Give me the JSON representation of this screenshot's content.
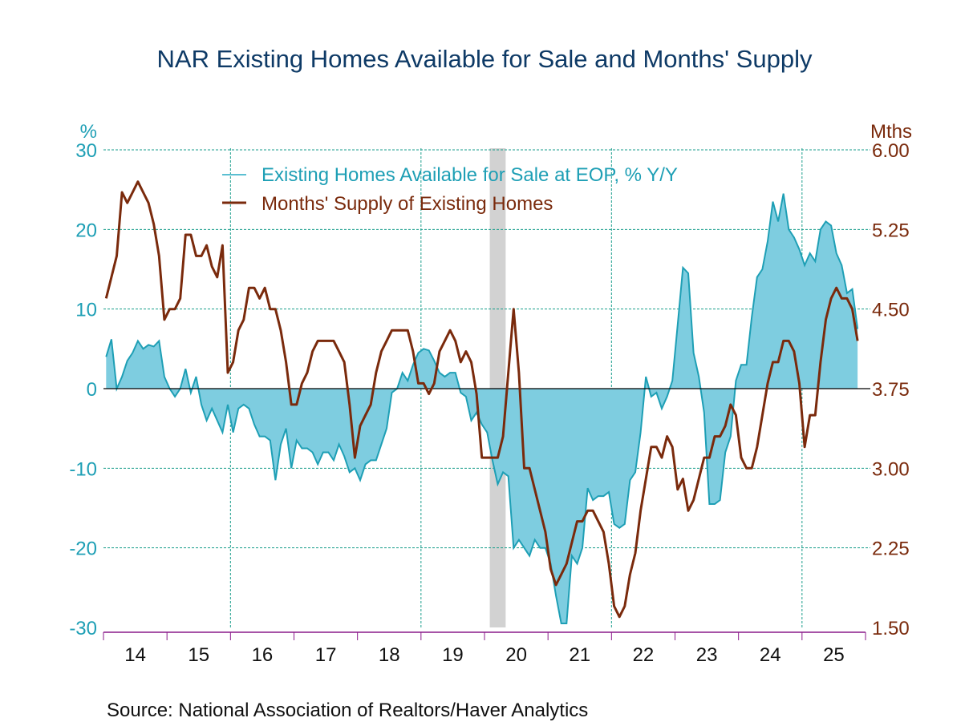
{
  "chart_data": {
    "type": "area+line",
    "title": "NAR Existing Homes Available for Sale and Months' Supply",
    "source": "Source:  National Association of Realtors/Haver Analytics",
    "left_axis": {
      "label": "%",
      "ylim": [
        -30,
        30
      ],
      "ticks": [
        "30",
        "20",
        "10",
        "0",
        "-10",
        "-20",
        "-30"
      ],
      "tick_values": [
        30,
        20,
        10,
        0,
        -10,
        -20,
        -30
      ],
      "color": "#1e9fb5"
    },
    "right_axis": {
      "label": "Mths",
      "ylim": [
        1.5,
        6.0
      ],
      "ticks": [
        "6.00",
        "5.25",
        "4.50",
        "3.75",
        "3.00",
        "2.25",
        "1.50"
      ],
      "tick_values": [
        6.0,
        5.25,
        4.5,
        3.75,
        3.0,
        2.25,
        1.5
      ],
      "color": "#7a2a0c"
    },
    "x_axis": {
      "start": "2014-01",
      "end": "2025-12",
      "year_labels": [
        "14",
        "15",
        "16",
        "17",
        "18",
        "19",
        "20",
        "21",
        "22",
        "23",
        "24",
        "25"
      ],
      "frequency": "monthly"
    },
    "grid": true,
    "legend": {
      "placement": "top-center",
      "entries": [
        {
          "label": "Existing Homes Available for Sale at EOP, % Y/Y",
          "color": "#1e9fb5"
        },
        {
          "label": "Months' Supply of Existing Homes",
          "color": "#7a2a0c"
        }
      ]
    },
    "recession_shading": [
      {
        "start": "2020-02",
        "end": "2020-04"
      }
    ],
    "series": [
      {
        "name": "Existing Homes Available for Sale at EOP, % Y/Y",
        "axis": "left",
        "style": "area",
        "color": "#1e9fb5",
        "fill": "#7ecde0",
        "values": [
          4,
          6.2,
          0,
          1.5,
          3.5,
          4.5,
          6,
          5,
          5.5,
          5.3,
          6,
          1.5,
          0,
          -1,
          0,
          2.5,
          -0.5,
          1.5,
          -2,
          -4,
          -2.5,
          -4,
          -5.5,
          -2,
          -5.5,
          -2.5,
          -2,
          -2.5,
          -4.5,
          -6,
          -6,
          -6.5,
          -11.5,
          -7,
          -5,
          -10,
          -6.5,
          -7.5,
          -7.5,
          -8,
          -9.5,
          -8,
          -8,
          -9,
          -7,
          -8.5,
          -10.5,
          -10,
          -11.5,
          -9.5,
          -9,
          -9,
          -7,
          -5,
          -0.5,
          0,
          2,
          1,
          3,
          4.5,
          5,
          4.8,
          3.5,
          2,
          1.5,
          2,
          2,
          -0.5,
          -1,
          -4,
          -3,
          -4.5,
          -5.5,
          -9,
          -12,
          -10.5,
          -11,
          -20,
          -19,
          -20,
          -21,
          -19,
          -20,
          -20,
          -22,
          -26,
          -29.5,
          -29.5,
          -21,
          -22,
          -20,
          -12.5,
          -14,
          -13.5,
          -13.5,
          -13,
          -17,
          -17.5,
          -17,
          -11.5,
          -10.5,
          -5.5,
          1.5,
          -1,
          -0.5,
          -2.5,
          -1,
          1,
          8,
          15.2,
          14.5,
          4.5,
          1.5,
          -3,
          -14.5,
          -14.5,
          -14,
          -8,
          -6,
          1,
          3,
          3,
          9,
          14,
          15,
          18.5,
          23.5,
          21,
          24.5,
          20,
          19,
          17.5,
          15.5,
          17,
          16,
          20,
          21,
          20.5,
          17,
          15.5,
          12,
          12.5,
          7.5
        ]
      },
      {
        "name": "Months' Supply of Existing Homes",
        "axis": "right",
        "style": "line",
        "color": "#7a2a0c",
        "values": [
          4.6,
          4.8,
          5.0,
          5.6,
          5.5,
          5.6,
          5.7,
          5.6,
          5.5,
          5.3,
          5.0,
          4.4,
          4.5,
          4.5,
          4.6,
          5.2,
          5.2,
          5.0,
          5.0,
          5.1,
          4.9,
          4.8,
          5.1,
          3.9,
          4.0,
          4.3,
          4.4,
          4.7,
          4.7,
          4.6,
          4.7,
          4.5,
          4.5,
          4.3,
          4.0,
          3.6,
          3.6,
          3.8,
          3.9,
          4.1,
          4.2,
          4.2,
          4.2,
          4.2,
          4.1,
          4.0,
          3.6,
          3.1,
          3.4,
          3.5,
          3.6,
          3.9,
          4.1,
          4.2,
          4.3,
          4.3,
          4.3,
          4.3,
          4.1,
          3.8,
          3.8,
          3.7,
          3.8,
          4.1,
          4.2,
          4.3,
          4.2,
          4.0,
          4.1,
          4.0,
          3.7,
          3.1,
          3.1,
          3.1,
          3.1,
          3.3,
          3.9,
          4.5,
          3.9,
          3.0,
          3.0,
          2.8,
          2.6,
          2.4,
          2.05,
          1.9,
          2.0,
          2.1,
          2.3,
          2.5,
          2.5,
          2.6,
          2.6,
          2.5,
          2.4,
          2.1,
          1.7,
          1.6,
          1.7,
          2.0,
          2.2,
          2.6,
          2.9,
          3.2,
          3.2,
          3.1,
          3.3,
          3.2,
          2.8,
          2.9,
          2.6,
          2.7,
          2.9,
          3.1,
          3.1,
          3.3,
          3.3,
          3.4,
          3.6,
          3.5,
          3.1,
          3.0,
          3.0,
          3.2,
          3.5,
          3.8,
          4.0,
          4.0,
          4.2,
          4.2,
          4.1,
          3.8,
          3.2,
          3.5,
          3.5,
          4.0,
          4.4,
          4.6,
          4.7,
          4.6,
          4.6,
          4.5,
          4.2
        ]
      }
    ]
  }
}
